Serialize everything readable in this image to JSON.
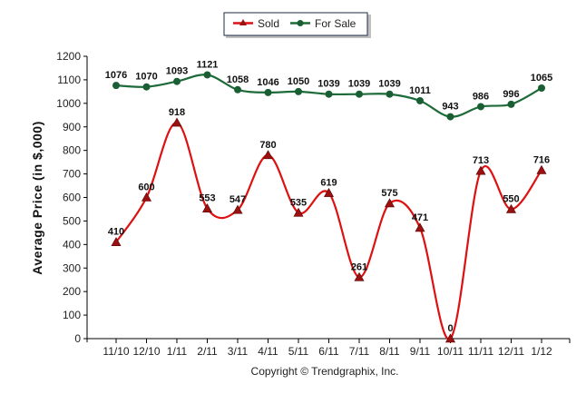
{
  "chart_data": {
    "type": "line",
    "ylabel": "Average Price (in $,000)",
    "xlabel": "",
    "footer": "Copyright © Trendgraphix, Inc.",
    "categories": [
      "11/10",
      "12/10",
      "1/11",
      "2/11",
      "3/11",
      "4/11",
      "5/11",
      "6/11",
      "7/11",
      "8/11",
      "9/11",
      "10/11",
      "11/11",
      "12/11",
      "1/12"
    ],
    "ylim": [
      0,
      1200
    ],
    "yticks": [
      0,
      100,
      200,
      300,
      400,
      500,
      600,
      700,
      800,
      900,
      1000,
      1100,
      1200
    ],
    "grid": false,
    "legend_position": "top-center",
    "smooth": true,
    "series": [
      {
        "name": "Sold",
        "color": "#dd1111",
        "marker": "triangle",
        "marker_color": "#9b1010",
        "values": [
          410,
          600,
          918,
          553,
          547,
          780,
          535,
          619,
          261,
          575,
          471,
          0,
          713,
          550,
          716
        ]
      },
      {
        "name": "For Sale",
        "color": "#1e6b3a",
        "marker": "circle",
        "marker_color": "#1a5e33",
        "values": [
          1076,
          1070,
          1093,
          1121,
          1058,
          1046,
          1050,
          1039,
          1039,
          1039,
          1011,
          943,
          986,
          996,
          1065
        ]
      }
    ]
  }
}
